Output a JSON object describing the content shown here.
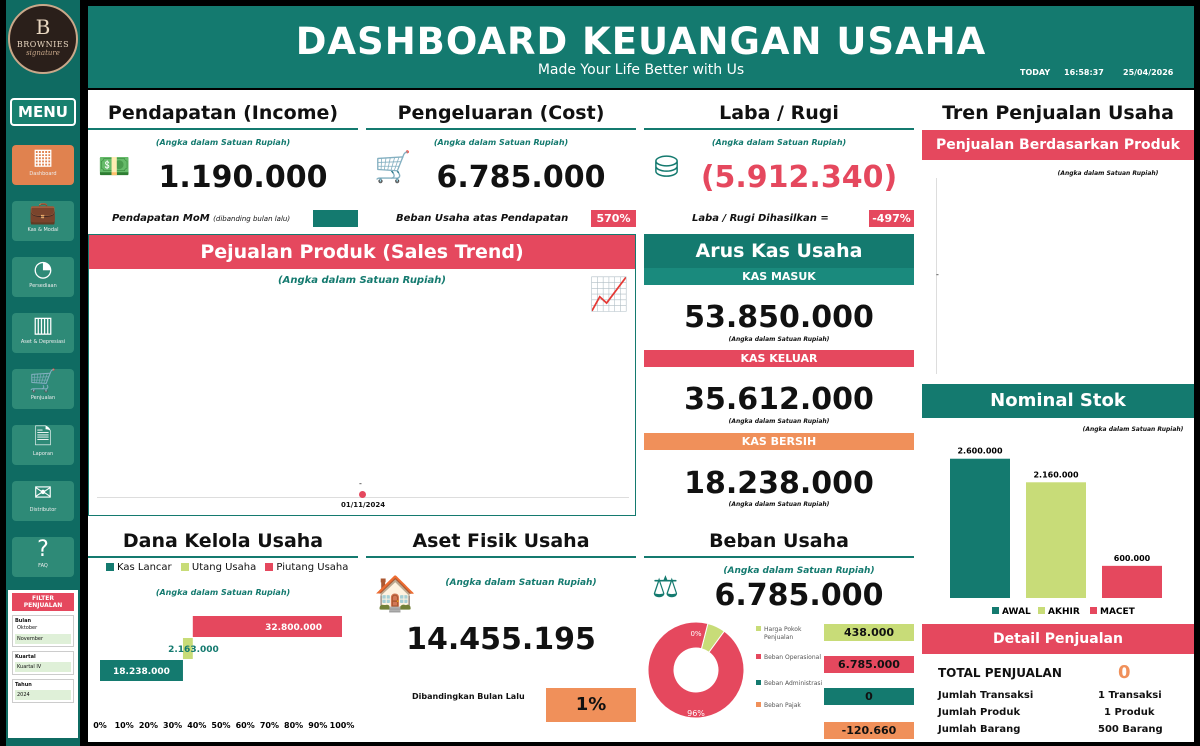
{
  "brand": {
    "logo_letter": "B",
    "logo_name": "BROWNIES",
    "logo_tag": "signature"
  },
  "sidebar": {
    "menu_label": "MENU",
    "items": [
      {
        "label": "Dashboard",
        "icon": "presentation-icon"
      },
      {
        "label": "Kas & Modal",
        "icon": "briefcase-icon"
      },
      {
        "label": "Persediaan",
        "icon": "pie-icon"
      },
      {
        "label": "Aset & Depresiasi",
        "icon": "chart-doc-icon"
      },
      {
        "label": "Penjualan",
        "icon": "cart-icon"
      },
      {
        "label": "Laporan",
        "icon": "document-icon"
      },
      {
        "label": "Distributor",
        "icon": "mail-icon"
      },
      {
        "label": "FAQ",
        "icon": "question-icon"
      }
    ],
    "filter": {
      "title": "FILTER PENJUALAN",
      "bulan_label": "Bulan",
      "bulan_options": [
        "Oktober",
        "November"
      ],
      "kuartal_label": "Kuartal",
      "kuartal_value": "Kuartal IV",
      "tahun_label": "Tahun",
      "tahun_value": "2024"
    }
  },
  "header": {
    "title": "DASHBOARD KEUANGAN USAHA",
    "subtitle": "Made Your Life Better with Us",
    "today_label": "TODAY",
    "time": "16:58:37",
    "date": "25/04/2026"
  },
  "unit_text": "(Angka dalam Satuan Rupiah)",
  "income": {
    "title": "Pendapatan (Income)",
    "value": "1.190.000",
    "mom_label": "Pendapatan MoM",
    "mom_note": "(dibanding bulan lalu)",
    "mom_value": ""
  },
  "cost": {
    "title": "Pengeluaran (Cost)",
    "value": "6.785.000",
    "ratio_label": "Beban Usaha atas Pendapatan",
    "ratio_value": "570%"
  },
  "profit": {
    "title": "Laba / Rugi",
    "value": "(5.912.340)",
    "label": "Laba / Rugi Dihasilkan =",
    "ratio_value": "-497%"
  },
  "sales_trend": {
    "title": "Pejualan Produk (Sales Trend)",
    "x_label": "01/11/2024",
    "point_label": "-"
  },
  "cashflow": {
    "title": "Arus Kas Usaha",
    "in_label": "KAS MASUK",
    "in_value": "53.850.000",
    "out_label": "KAS KELUAR",
    "out_value": "35.612.000",
    "net_label": "KAS BERSIH",
    "net_value": "18.238.000"
  },
  "trend": {
    "title": "Tren Penjualan Usaha",
    "sub": "Penjualan Berdasarkan Produk",
    "dash": "-"
  },
  "stok": {
    "title": "Nominal Stok"
  },
  "dana": {
    "title": "Dana Kelola Usaha",
    "legend": [
      "Kas Lancar",
      "Utang Usaha",
      "Piutang Usaha"
    ]
  },
  "aset": {
    "title": "Aset Fisik Usaha",
    "value": "14.455.195",
    "compare_label": "Dibandingkan Bulan Lalu",
    "compare_value": "1%"
  },
  "beban": {
    "title": "Beban Usaha",
    "value": "6.785.000",
    "items": [
      {
        "label": "Harga Pokok Penjualan",
        "value": "438.000",
        "color": "#c8dc78"
      },
      {
        "label": "Beban Operasional",
        "value": "6.785.000",
        "color": "#e5485e"
      },
      {
        "label": "Beban Administrasi",
        "value": "0",
        "color": "#147a6f"
      },
      {
        "label": "Beban Pajak",
        "value": "-120.660",
        "color": "#f0905a"
      }
    ],
    "donut_big": "96%",
    "donut_small": "0%"
  },
  "detail": {
    "title": "Detail Penjualan",
    "total_label": "TOTAL PENJUALAN",
    "total_value": "0",
    "rows": [
      {
        "label": "Jumlah Transaksi",
        "value": "1 Transaksi"
      },
      {
        "label": "Jumlah Produk",
        "value": "1 Produk"
      },
      {
        "label": "Jumlah Barang",
        "value": "500 Barang"
      }
    ]
  },
  "chart_data": [
    {
      "type": "bar",
      "title": "Nominal Stok",
      "categories": [
        "AWAL",
        "AKHIR",
        "MACET"
      ],
      "values": [
        2600000,
        2160000,
        600000
      ],
      "labels": [
        "2.600.000",
        "2.160.000",
        "600.000"
      ],
      "colors": [
        "#147a6f",
        "#c8dc78",
        "#e5485e"
      ],
      "ylim": [
        0,
        2800000
      ],
      "legend": "bottom"
    },
    {
      "type": "bar",
      "title": "Dana Kelola Usaha",
      "categories": [
        "Kas Lancar",
        "Utang Usaha",
        "Piutang Usaha"
      ],
      "values": [
        18238000,
        2163000,
        32800000
      ],
      "labels": [
        "18.238.000",
        "2.163.000",
        "32.800.000"
      ],
      "colors": [
        "#147a6f",
        "#c8dc78",
        "#e5485e"
      ],
      "x_ticks": [
        "0%",
        "10%",
        "20%",
        "30%",
        "40%",
        "50%",
        "60%",
        "70%",
        "80%",
        "90%",
        "100%"
      ],
      "legend": "top"
    },
    {
      "type": "pie",
      "title": "Beban Usaha",
      "categories": [
        "Harga Pokok Penjualan",
        "Beban Operasional",
        "Beban Administrasi",
        "Beban Pajak"
      ],
      "values": [
        438000,
        6785000,
        0,
        -120660
      ]
    }
  ]
}
